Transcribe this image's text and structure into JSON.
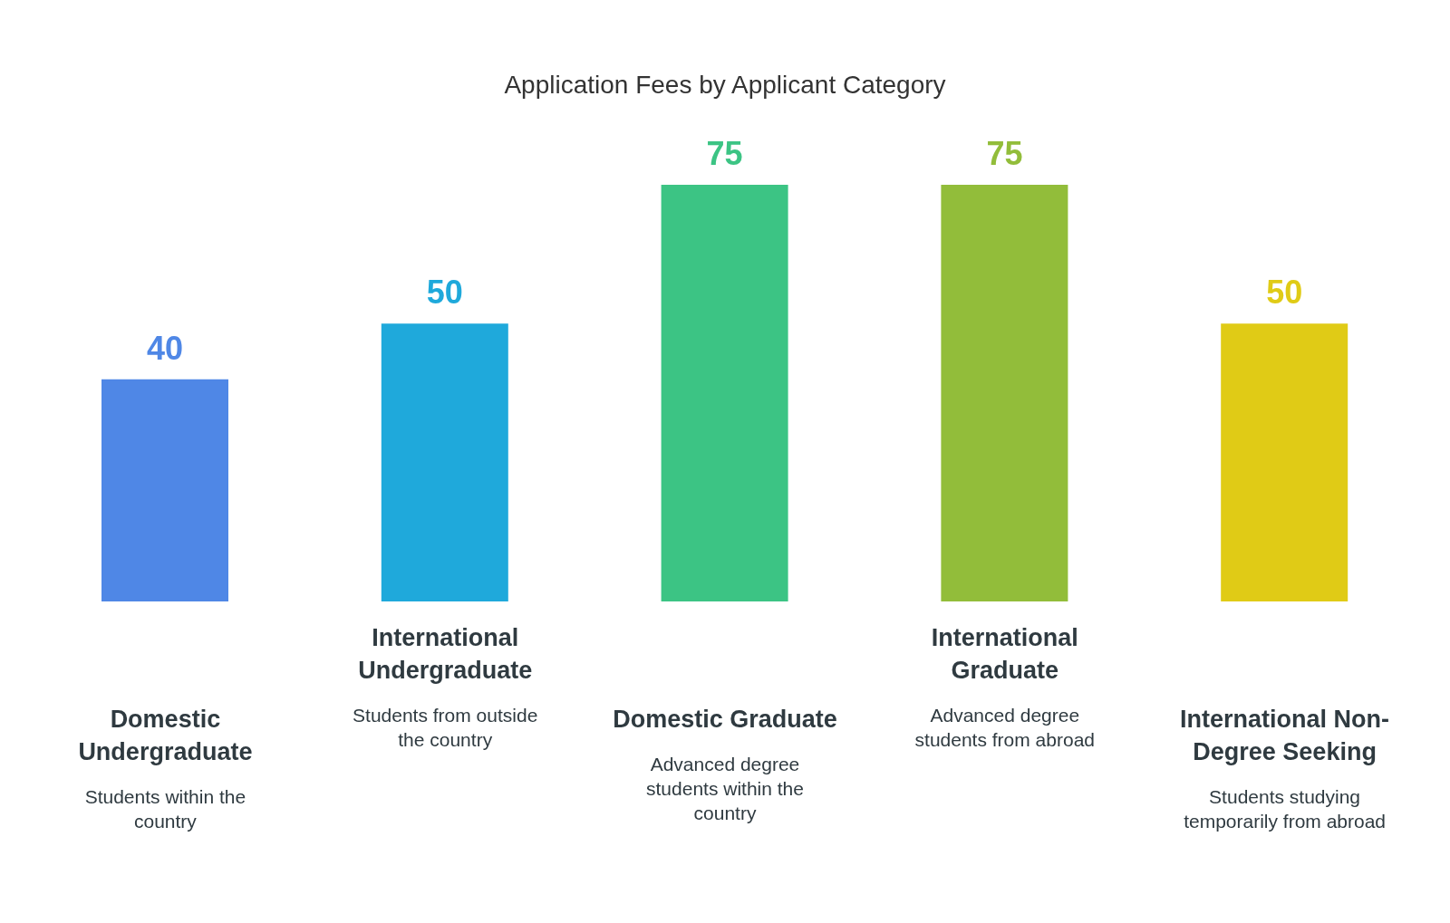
{
  "chart_data": {
    "type": "bar",
    "title": "Application Fees by Applicant Category",
    "categories": [
      "Domestic Undergraduate",
      "International Undergraduate",
      "Domestic Graduate",
      "International Graduate",
      "International Non-Degree Seeking"
    ],
    "values": [
      40,
      50,
      75,
      75,
      50
    ],
    "colors": [
      "#4f87e6",
      "#1fa9db",
      "#3cc484",
      "#92bd3a",
      "#e0cb16"
    ],
    "data_labels": true,
    "annotations": [
      "Students within the country",
      "Students from outside the country",
      "Advanced degree students within the country",
      "Advanced degree students from abroad",
      "Students studying temporarily from abroad"
    ]
  }
}
